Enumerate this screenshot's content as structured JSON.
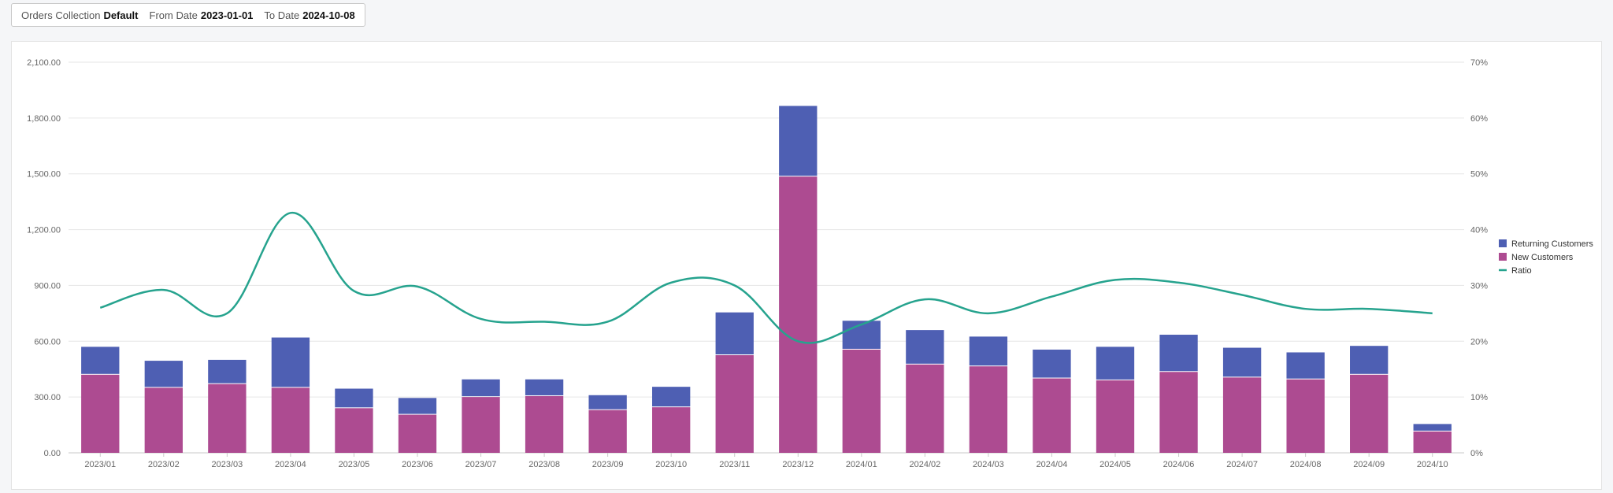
{
  "filters": {
    "collection_label": "Orders Collection",
    "collection_value": "Default",
    "from_label": "From Date",
    "from_value": "2023-01-01",
    "to_label": "To Date",
    "to_value": "2024-10-08"
  },
  "chart_data": {
    "type": "bar",
    "stacked": true,
    "categories": [
      "2023/01",
      "2023/02",
      "2023/03",
      "2023/04",
      "2023/05",
      "2023/06",
      "2023/07",
      "2023/08",
      "2023/09",
      "2023/10",
      "2023/11",
      "2023/12",
      "2024/01",
      "2024/02",
      "2024/03",
      "2024/04",
      "2024/05",
      "2024/06",
      "2024/07",
      "2024/08",
      "2024/09",
      "2024/10"
    ],
    "series": [
      {
        "name": "Returning Customers",
        "type": "bar",
        "color": "#4e5fb3",
        "values": [
          150,
          145,
          130,
          270,
          105,
          90,
          95,
          90,
          80,
          110,
          230,
          380,
          155,
          185,
          160,
          155,
          180,
          200,
          160,
          145,
          155,
          40
        ]
      },
      {
        "name": "New Customers",
        "type": "bar",
        "color": "#ad4b91",
        "values": [
          420,
          350,
          370,
          350,
          240,
          205,
          300,
          305,
          230,
          245,
          525,
          1485,
          555,
          475,
          465,
          400,
          390,
          435,
          405,
          395,
          420,
          115
        ]
      },
      {
        "name": "Ratio",
        "type": "line",
        "axis": "right",
        "color": "#26a38e",
        "values": [
          26,
          29.2,
          25,
          43,
          29,
          29.8,
          24,
          23.5,
          23.5,
          30.5,
          30,
          20,
          23,
          27.5,
          25,
          28,
          31,
          30.5,
          28.3,
          25.8,
          25.8,
          25
        ]
      }
    ],
    "left_axis": {
      "min": 0,
      "max": 2100,
      "ticks": [
        "0.00",
        "300.00",
        "600.00",
        "900.00",
        "1,200.00",
        "1,500.00",
        "1,800.00",
        "2,100.00"
      ]
    },
    "right_axis": {
      "min": 0,
      "max": 70,
      "ticks": [
        "0%",
        "10%",
        "20%",
        "30%",
        "40%",
        "50%",
        "60%",
        "70%"
      ]
    },
    "grid": true,
    "legend_position": "right",
    "legend": [
      "Returning Customers",
      "New Customers",
      "Ratio"
    ]
  }
}
